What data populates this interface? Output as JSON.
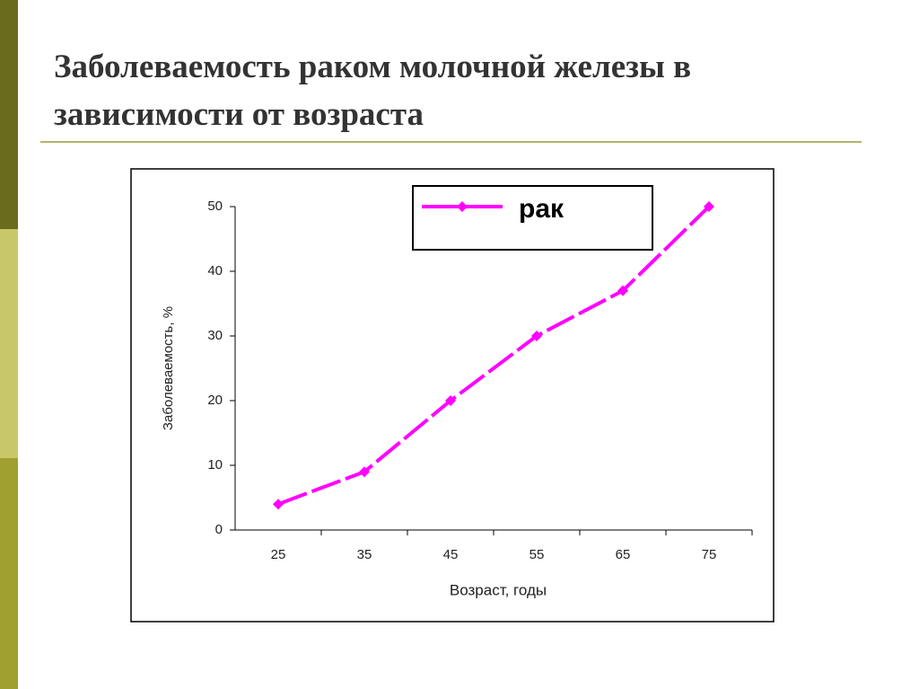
{
  "chart_data": {
    "type": "line",
    "title": "Заболеваемость раком молочной железы в зависимости от возраста",
    "categories": [
      "25",
      "35",
      "45",
      "55",
      "65",
      "75"
    ],
    "series": [
      {
        "name": "рак",
        "color": "#ff00ff",
        "values": [
          4,
          9,
          20,
          30,
          37,
          50
        ]
      }
    ],
    "ylim": [
      0,
      50
    ],
    "yticks": [
      0,
      10,
      20,
      30,
      40,
      50
    ],
    "x_label": "Возраст, годы",
    "y_label": "Заболеваемость, %"
  }
}
